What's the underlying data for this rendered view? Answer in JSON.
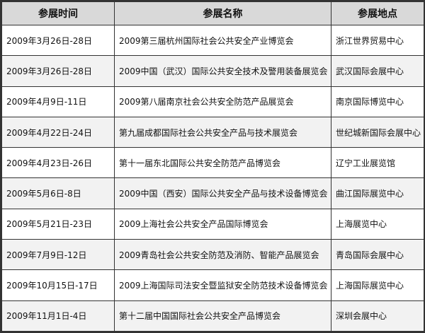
{
  "headers": [
    "参展时间",
    "参展名称",
    "参展地点"
  ],
  "rows": [
    {
      "date": "2009年3月26日-28日",
      "name": "2009第三届杭州国际社会公共安全产业博览会",
      "venue": "浙江世界贸易中心"
    },
    {
      "date": "2009年3月26日-28日",
      "name": "2009中国（武汉）国际公共安全技术及警用装备展览会",
      "venue": "武汉国际会展中心"
    },
    {
      "date": "2009年4月9日-11日",
      "name": "2009第八届南京社会公共安全防范产品展览会",
      "venue": "南京国际博览中心"
    },
    {
      "date": "2009年4月22日-24日",
      "name": "第九届成都国际社会公共安全产品与技术展览会",
      "venue": "世纪城新国际会展中心"
    },
    {
      "date": "2009年4月23日-26日",
      "name": "第十一届东北国际公共安全防范产品博览会",
      "venue": "辽宁工业展览馆"
    },
    {
      "date": "2009年5月6日-8日",
      "name": "2009中国（西安）国际公共安全产品与技术设备博览会",
      "venue": "曲江国际展览中心"
    },
    {
      "date": "2009年5月21日-23日",
      "name": "2009上海社会公共安全产品国际博览会",
      "venue": "上海展览中心"
    },
    {
      "date": "2009年7月9日-12日",
      "name": "2009青岛社会公共安全防范及消防、智能产品展览会",
      "venue": "青岛国际会展中心"
    },
    {
      "date": "2009年10月15日-17日",
      "name": "2009上海国际司法安全暨监狱安全防范技术设备博览会",
      "venue": "上海国际展览中心"
    },
    {
      "date": "2009年11月1日-4日",
      "name": "第十二届中国国际社会公共安全产品博览会",
      "venue": "深圳会展中心"
    }
  ]
}
